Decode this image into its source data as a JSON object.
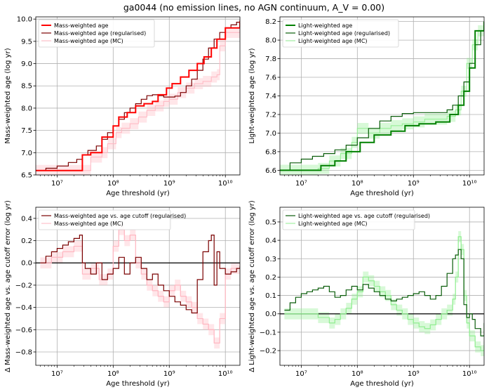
{
  "title": "ga0044 (no emission lines, no AGN continuum,  A_V = 0.00)",
  "chart_data": [
    {
      "type": "line",
      "panel": "top-left",
      "xlabel": "Age threshold (yr)",
      "ylabel": "Mass-weighted age (log yr)",
      "xscale": "log",
      "xlim_log": [
        6.62,
        10.26
      ],
      "ylim": [
        6.5,
        10.05
      ],
      "yticks": [
        6.5,
        7.0,
        7.5,
        8.0,
        8.5,
        9.0,
        9.5,
        10.0
      ],
      "ytick_labels": [
        "6.5",
        "7.0",
        "7.5",
        "8.0",
        "8.5",
        "9.0",
        "9.5",
        "10.0"
      ],
      "xticks_log": [
        7,
        8,
        9,
        10
      ],
      "xtick_labels": [
        "10⁷",
        "10⁸",
        "10⁹",
        "10¹⁰"
      ],
      "zero_line": false,
      "legend": "top-left",
      "series": [
        {
          "name": "Mass-weighted age",
          "color": "#ff0000",
          "width": 2.0,
          "step": true,
          "x": [
            6.62,
            7.45,
            7.45,
            7.6,
            7.6,
            7.8,
            7.8,
            8.0,
            8.0,
            8.1,
            8.1,
            8.25,
            8.25,
            8.4,
            8.4,
            8.55,
            8.55,
            8.7,
            8.7,
            8.8,
            8.8,
            8.95,
            8.95,
            9.05,
            9.05,
            9.2,
            9.2,
            9.35,
            9.35,
            9.5,
            9.5,
            9.62,
            9.62,
            9.75,
            9.75,
            9.85,
            9.85,
            10.0,
            10.0,
            10.26
          ],
          "y": [
            6.6,
            6.6,
            6.95,
            6.95,
            7.0,
            7.0,
            7.35,
            7.35,
            7.6,
            7.6,
            7.8,
            7.8,
            7.9,
            7.9,
            8.05,
            8.05,
            8.1,
            8.1,
            8.15,
            8.15,
            8.3,
            8.3,
            8.45,
            8.45,
            8.55,
            8.55,
            8.7,
            8.7,
            8.85,
            8.85,
            9.0,
            9.0,
            9.15,
            9.15,
            9.35,
            9.35,
            9.55,
            9.55,
            9.8,
            9.95
          ]
        },
        {
          "name": "Mass-weighted age (regularised)",
          "color": "#7a0000",
          "width": 1.2,
          "step": true,
          "x": [
            6.62,
            6.8,
            7.0,
            7.2,
            7.35,
            7.45,
            7.55,
            7.7,
            7.8,
            7.9,
            8.0,
            8.1,
            8.2,
            8.3,
            8.4,
            8.5,
            8.6,
            8.7,
            8.8,
            8.9,
            9.0,
            9.1,
            9.2,
            9.3,
            9.4,
            9.5,
            9.6,
            9.7,
            9.8,
            9.9,
            10.0,
            10.1,
            10.2,
            10.26
          ],
          "y": [
            6.6,
            6.65,
            6.7,
            6.78,
            6.85,
            6.95,
            7.05,
            7.15,
            7.3,
            7.45,
            7.6,
            7.75,
            7.9,
            8.0,
            8.1,
            8.2,
            8.28,
            8.3,
            8.28,
            8.25,
            8.25,
            8.27,
            8.35,
            8.5,
            8.65,
            8.85,
            9.1,
            9.35,
            9.55,
            9.7,
            9.8,
            9.87,
            9.93,
            9.98
          ]
        },
        {
          "name": "Mass-weighted age (MC)",
          "color": "#ffb6c1",
          "width": 1.0,
          "step": true,
          "x": [
            6.62,
            7.5,
            7.6,
            7.8,
            7.9,
            8.05,
            8.15,
            8.3,
            8.45,
            8.6,
            8.75,
            8.9,
            9.0,
            9.15,
            9.3,
            9.45,
            9.6,
            9.75,
            9.85,
            9.9,
            10.0,
            10.26
          ],
          "y": [
            6.6,
            6.6,
            6.9,
            7.0,
            7.2,
            7.45,
            7.55,
            7.65,
            7.8,
            7.95,
            8.05,
            8.15,
            8.2,
            8.35,
            8.45,
            8.55,
            8.6,
            8.7,
            8.75,
            9.4,
            9.7,
            9.9
          ]
        }
      ]
    },
    {
      "type": "line",
      "panel": "top-right",
      "xlabel": "Age threshold (yr)",
      "ylabel": "Light-weighted age (log yr)",
      "xscale": "log",
      "xlim_log": [
        6.62,
        10.26
      ],
      "ylim": [
        6.55,
        8.25
      ],
      "yticks": [
        6.6,
        6.8,
        7.0,
        7.2,
        7.4,
        7.6,
        7.8,
        8.0,
        8.2
      ],
      "ytick_labels": [
        "6.6",
        "6.8",
        "7.0",
        "7.2",
        "7.4",
        "7.6",
        "7.8",
        "8.0",
        "8.2"
      ],
      "xticks_log": [
        7,
        8,
        9,
        10
      ],
      "xtick_labels": [
        "10⁷",
        "10⁸",
        "10⁹",
        "10¹⁰"
      ],
      "zero_line": false,
      "legend": "top-left",
      "series": [
        {
          "name": "Light-weighted age",
          "color": "#008000",
          "width": 2.0,
          "step": true,
          "x": [
            6.62,
            7.35,
            7.35,
            7.6,
            7.6,
            7.8,
            7.8,
            8.05,
            8.05,
            8.3,
            8.3,
            8.6,
            8.6,
            8.85,
            8.85,
            9.1,
            9.1,
            9.4,
            9.4,
            9.65,
            9.65,
            9.8,
            9.8,
            9.9,
            9.9,
            10.0,
            10.0,
            10.1,
            10.1,
            10.26
          ],
          "y": [
            6.6,
            6.6,
            6.65,
            6.65,
            6.7,
            6.7,
            6.8,
            6.8,
            6.9,
            6.9,
            6.98,
            6.98,
            7.02,
            7.02,
            7.08,
            7.08,
            7.1,
            7.1,
            7.12,
            7.12,
            7.2,
            7.2,
            7.3,
            7.3,
            7.45,
            7.45,
            7.7,
            7.7,
            8.1,
            8.2
          ]
        },
        {
          "name": "Light-weighted age (regularised)",
          "color": "#0a5c0a",
          "width": 1.2,
          "step": true,
          "x": [
            6.62,
            6.8,
            7.0,
            7.2,
            7.4,
            7.6,
            7.8,
            8.0,
            8.2,
            8.4,
            8.6,
            8.8,
            9.0,
            9.2,
            9.4,
            9.6,
            9.7,
            9.8,
            9.9,
            10.0,
            10.1,
            10.2,
            10.26
          ],
          "y": [
            6.6,
            6.68,
            6.72,
            6.75,
            6.78,
            6.82,
            6.87,
            6.95,
            7.05,
            7.13,
            7.18,
            7.21,
            7.22,
            7.22,
            7.22,
            7.25,
            7.3,
            7.4,
            7.55,
            7.75,
            7.95,
            8.1,
            8.2
          ]
        },
        {
          "name": "Light-weighted age (MC)",
          "color": "#90ee90",
          "width": 1.0,
          "step": true,
          "x": [
            6.62,
            7.3,
            7.5,
            7.7,
            7.9,
            8.0,
            8.2,
            8.4,
            8.6,
            8.8,
            9.0,
            9.2,
            9.4,
            9.6,
            9.75,
            9.85,
            9.95,
            10.05,
            10.15,
            10.26
          ],
          "y": [
            6.6,
            6.62,
            6.7,
            6.78,
            6.9,
            7.05,
            7.0,
            7.05,
            7.08,
            7.1,
            7.12,
            7.15,
            7.15,
            7.18,
            7.25,
            7.45,
            7.75,
            7.95,
            8.1,
            8.2
          ]
        }
      ]
    },
    {
      "type": "line",
      "panel": "bottom-left",
      "xlabel": "Age threshold (yr)",
      "ylabel": "Δ Mass-weighted age vs. age cutoff error (log yr)",
      "xscale": "log",
      "xlim_log": [
        6.62,
        10.26
      ],
      "ylim": [
        -0.92,
        0.5
      ],
      "yticks": [
        -0.8,
        -0.6,
        -0.4,
        -0.2,
        0.0,
        0.2,
        0.4
      ],
      "ytick_labels": [
        "−0.8",
        "−0.6",
        "−0.4",
        "−0.2",
        "0.0",
        "0.2",
        "0.4"
      ],
      "xticks_log": [
        7,
        8,
        9,
        10
      ],
      "xtick_labels": [
        "10⁷",
        "10⁸",
        "10⁹",
        "10¹⁰"
      ],
      "zero_line": true,
      "legend": "top-left",
      "series": [
        {
          "name": "Mass-weighted age vs. age cutoff (regularised)",
          "color": "#7a0000",
          "width": 1.2,
          "step": true,
          "x": [
            6.7,
            6.8,
            6.9,
            7.0,
            7.1,
            7.2,
            7.3,
            7.4,
            7.45,
            7.5,
            7.6,
            7.7,
            7.8,
            7.9,
            8.0,
            8.1,
            8.2,
            8.3,
            8.4,
            8.5,
            8.6,
            8.7,
            8.8,
            8.9,
            9.0,
            9.1,
            9.2,
            9.3,
            9.4,
            9.5,
            9.6,
            9.7,
            9.75,
            9.8,
            9.85,
            9.9,
            10.0,
            10.1,
            10.2,
            10.26
          ],
          "y": [
            0.0,
            0.06,
            0.1,
            0.13,
            0.16,
            0.19,
            0.22,
            0.25,
            0.0,
            -0.05,
            -0.1,
            0.0,
            -0.15,
            -0.1,
            -0.05,
            0.05,
            -0.1,
            0.0,
            0.05,
            -0.05,
            -0.15,
            -0.1,
            -0.2,
            -0.25,
            -0.3,
            -0.35,
            -0.38,
            -0.42,
            -0.45,
            -0.15,
            0.1,
            0.2,
            0.25,
            -0.2,
            0.1,
            -0.05,
            -0.1,
            -0.08,
            -0.05,
            -0.03
          ]
        },
        {
          "name": "Mass-weighted age (MC)",
          "color": "#ffb6c1",
          "width": 1.0,
          "step": true,
          "x": [
            6.7,
            6.9,
            7.1,
            7.3,
            7.45,
            7.6,
            7.75,
            7.9,
            8.0,
            8.1,
            8.2,
            8.3,
            8.4,
            8.5,
            8.6,
            8.7,
            8.8,
            8.9,
            9.0,
            9.1,
            9.2,
            9.3,
            9.4,
            9.5,
            9.6,
            9.7,
            9.8,
            9.9,
            10.0,
            10.1,
            10.26
          ],
          "y": [
            0.0,
            0.05,
            0.1,
            0.15,
            -0.1,
            -0.05,
            -0.15,
            -0.1,
            0.15,
            0.3,
            0.2,
            0.25,
            0.0,
            -0.1,
            -0.2,
            -0.25,
            -0.3,
            -0.35,
            -0.25,
            -0.2,
            -0.3,
            -0.35,
            -0.4,
            -0.5,
            -0.55,
            -0.6,
            -0.72,
            -0.5,
            -0.1,
            -0.05,
            -0.02
          ]
        }
      ]
    },
    {
      "type": "line",
      "panel": "bottom-right",
      "xlabel": "Age threshold (yr)",
      "ylabel": "Δ Light-weighted age vs. age cutoff error (log yr)",
      "xscale": "log",
      "xlim_log": [
        6.62,
        10.26
      ],
      "ylim": [
        -0.28,
        0.58
      ],
      "yticks": [
        -0.2,
        -0.1,
        0.0,
        0.1,
        0.2,
        0.3,
        0.4,
        0.5
      ],
      "ytick_labels": [
        "−0.2",
        "−0.1",
        "0.0",
        "0.1",
        "0.2",
        "0.3",
        "0.4",
        "0.5"
      ],
      "xticks_log": [
        7,
        8,
        9,
        10
      ],
      "xtick_labels": [
        "10⁷",
        "10⁸",
        "10⁹",
        "10¹⁰"
      ],
      "zero_line": true,
      "legend": "top-left",
      "series": [
        {
          "name": "Light-weighted age vs. age cutoff (regularised)",
          "color": "#0a5c0a",
          "width": 1.2,
          "step": true,
          "x": [
            6.7,
            6.8,
            6.9,
            7.0,
            7.1,
            7.2,
            7.3,
            7.4,
            7.5,
            7.6,
            7.7,
            7.8,
            7.9,
            8.0,
            8.1,
            8.2,
            8.3,
            8.4,
            8.5,
            8.6,
            8.7,
            8.8,
            8.9,
            9.0,
            9.1,
            9.2,
            9.3,
            9.4,
            9.5,
            9.6,
            9.7,
            9.75,
            9.8,
            9.85,
            9.9,
            9.95,
            10.0,
            10.05,
            10.1,
            10.2,
            10.26
          ],
          "y": [
            0.02,
            0.06,
            0.09,
            0.11,
            0.12,
            0.13,
            0.14,
            0.15,
            0.12,
            0.09,
            0.1,
            0.13,
            0.15,
            0.13,
            0.16,
            0.14,
            0.12,
            0.1,
            0.08,
            0.07,
            0.08,
            0.09,
            0.1,
            0.11,
            0.12,
            0.1,
            0.08,
            0.1,
            0.15,
            0.22,
            0.3,
            0.32,
            0.35,
            0.3,
            0.05,
            -0.02,
            0.0,
            -0.03,
            -0.08,
            -0.12,
            -0.05
          ]
        },
        {
          "name": "Light-weighted age (MC)",
          "color": "#90ee90",
          "width": 1.0,
          "step": true,
          "x": [
            6.7,
            6.9,
            7.1,
            7.3,
            7.5,
            7.6,
            7.7,
            7.8,
            7.9,
            8.0,
            8.1,
            8.2,
            8.3,
            8.4,
            8.5,
            8.6,
            8.7,
            8.8,
            8.9,
            9.0,
            9.1,
            9.2,
            9.3,
            9.4,
            9.5,
            9.6,
            9.7,
            9.75,
            9.8,
            9.85,
            9.9,
            9.95,
            10.0,
            10.1,
            10.2,
            10.26
          ],
          "y": [
            0.0,
            0.0,
            0.0,
            -0.02,
            -0.05,
            -0.03,
            0.0,
            0.03,
            0.08,
            0.12,
            0.2,
            0.18,
            0.15,
            0.12,
            0.1,
            0.05,
            0.02,
            0.0,
            -0.03,
            -0.05,
            -0.07,
            -0.08,
            -0.06,
            -0.03,
            0.0,
            0.02,
            0.08,
            0.2,
            0.42,
            0.35,
            0.1,
            -0.05,
            -0.12,
            -0.18,
            -0.2,
            -0.15
          ]
        }
      ]
    }
  ]
}
